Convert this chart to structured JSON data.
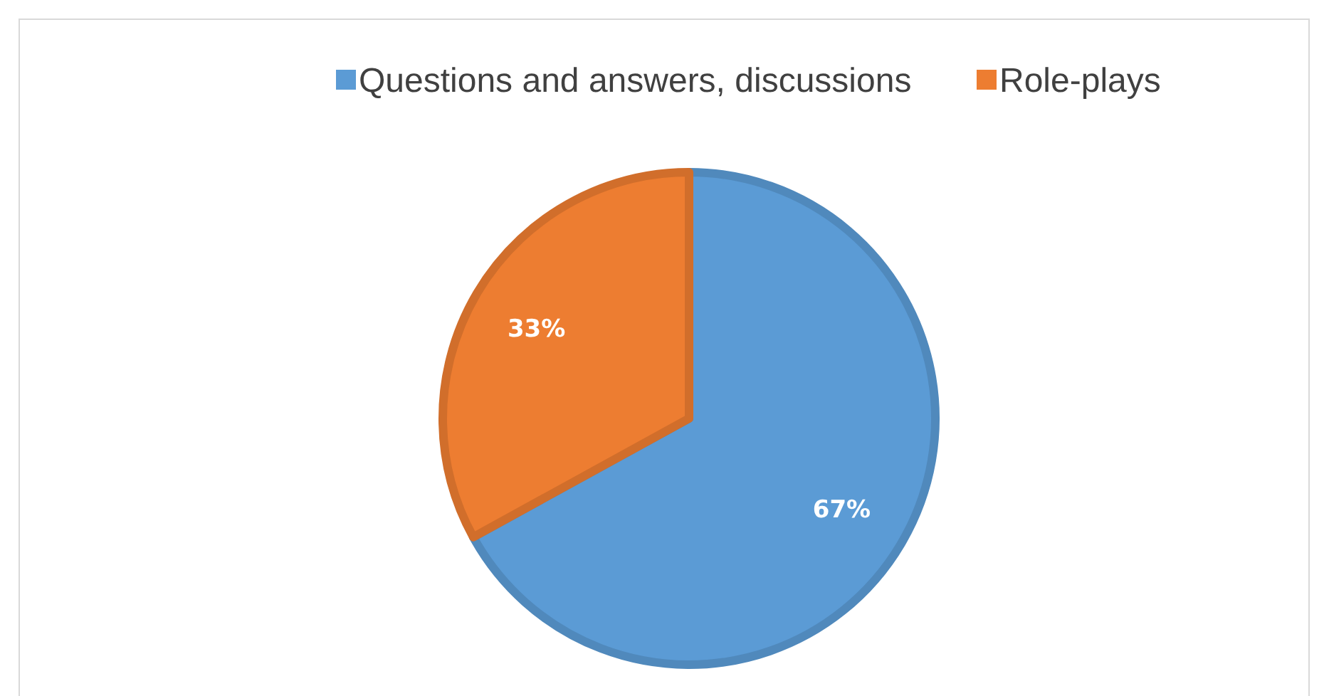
{
  "chart_data": {
    "type": "pie",
    "categories": [
      "Questions and answers, discussions",
      "Role-plays"
    ],
    "values": [
      67,
      33
    ],
    "colors": [
      "#5b9bd5",
      "#ed7d31"
    ],
    "value_labels": [
      "67%",
      "33%"
    ],
    "legend": "top"
  }
}
